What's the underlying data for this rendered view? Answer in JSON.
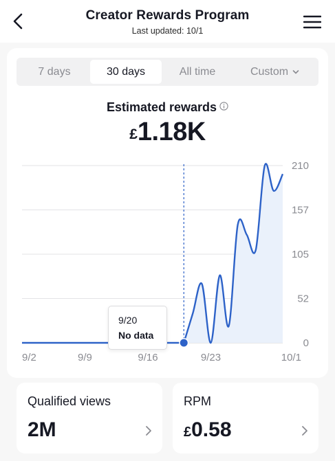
{
  "header": {
    "title": "Creator Rewards Program",
    "subtitle": "Last updated: 10/1"
  },
  "tabs": [
    {
      "label": "7 days",
      "selected": false
    },
    {
      "label": "30 days",
      "selected": true
    },
    {
      "label": "All time",
      "selected": false
    },
    {
      "label": "Custom",
      "selected": false
    }
  ],
  "summary": {
    "label": "Estimated rewards",
    "currency": "£",
    "value": "1.18K"
  },
  "chart_data": {
    "type": "line",
    "x": [
      "9/2",
      "9/3",
      "9/4",
      "9/5",
      "9/6",
      "9/7",
      "9/8",
      "9/9",
      "9/10",
      "9/11",
      "9/12",
      "9/13",
      "9/14",
      "9/15",
      "9/16",
      "9/17",
      "9/18",
      "9/19",
      "9/20",
      "9/21",
      "9/22",
      "9/23",
      "9/24",
      "9/25",
      "9/26",
      "9/27",
      "9/28",
      "9/29",
      "9/30",
      "10/1"
    ],
    "values": [
      0,
      0,
      0,
      0,
      0,
      0,
      0,
      0,
      0,
      0,
      0,
      0,
      0,
      0,
      0,
      0,
      0,
      0,
      null,
      35,
      70,
      0,
      80,
      20,
      140,
      128,
      110,
      210,
      180,
      200
    ],
    "x_tick_labels": [
      "9/2",
      "9/9",
      "9/16",
      "9/23",
      "10/1"
    ],
    "y_tick_labels": [
      "0",
      "52",
      "105",
      "157",
      "210"
    ],
    "ylim": [
      0,
      210
    ],
    "grid": true,
    "highlight": {
      "x": "9/20",
      "label": "9/20",
      "value_text": "No data"
    },
    "accent": "#2d62c8"
  },
  "stats": [
    {
      "label": "Qualified views",
      "currency": "",
      "value": "2M"
    },
    {
      "label": "RPM",
      "currency": "£",
      "value": "0.58"
    }
  ]
}
